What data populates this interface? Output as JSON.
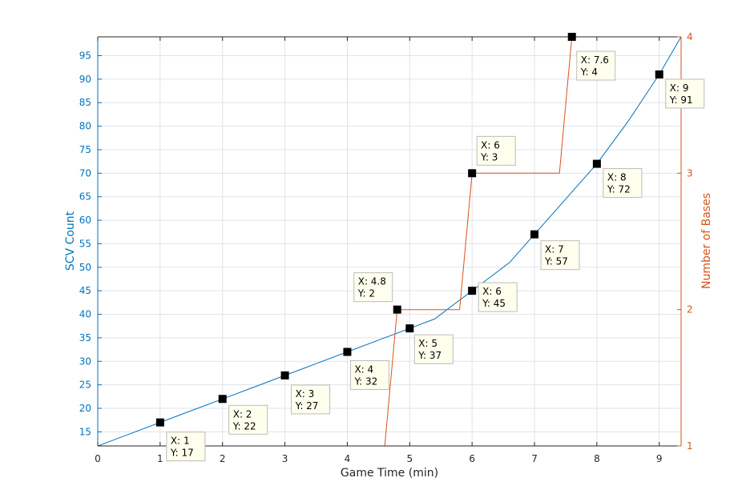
{
  "chart_data": {
    "type": "line",
    "xlabel": "Game Time (min)",
    "ylabel_left": "SCV Count",
    "ylabel_right": "Number of Bases",
    "xlim": [
      0,
      9.35
    ],
    "ylim_left": [
      12,
      99
    ],
    "ylim_right": [
      1,
      4
    ],
    "x_ticks": [
      0,
      1,
      2,
      3,
      4,
      5,
      6,
      7,
      8,
      9
    ],
    "y_left_ticks": [
      15,
      20,
      25,
      30,
      35,
      40,
      45,
      50,
      55,
      60,
      65,
      70,
      75,
      80,
      85,
      90,
      95
    ],
    "y_right_ticks": [
      1,
      2,
      3,
      4
    ],
    "grid": true,
    "colors": {
      "scv": "#0072BD",
      "bases": "#D95319",
      "grid": "#dfe3e8",
      "axis_dark": "#262626"
    },
    "series": [
      {
        "axis": "left",
        "values_x": [
          0,
          0.5,
          1,
          1.5,
          2,
          2.5,
          3,
          3.5,
          4,
          4.5,
          5,
          5.4,
          5.8,
          6,
          6.3,
          6.6,
          7,
          7.5,
          8,
          8.5,
          9,
          9.35
        ],
        "values_y": [
          12,
          14.5,
          17,
          19.5,
          22,
          24.5,
          27,
          29.5,
          32,
          34.5,
          37,
          39,
          43,
          45,
          48,
          51,
          57,
          64.5,
          72,
          81,
          91,
          99
        ]
      },
      {
        "axis": "right",
        "values_x": [
          0,
          4.6,
          4.8,
          5.8,
          6.0,
          7.4,
          7.6,
          9.35
        ],
        "values_y": [
          1,
          1,
          2,
          2,
          3,
          3,
          4,
          4
        ]
      }
    ],
    "datatips": [
      {
        "axis": "left",
        "x": 1,
        "y": 17,
        "label_x": "X: 1",
        "label_y": "Y: 17"
      },
      {
        "axis": "left",
        "x": 2,
        "y": 22,
        "label_x": "X: 2",
        "label_y": "Y: 22"
      },
      {
        "axis": "left",
        "x": 3,
        "y": 27,
        "label_x": "X: 3",
        "label_y": "Y: 27"
      },
      {
        "axis": "left",
        "x": 4,
        "y": 32,
        "label_x": "X: 4",
        "label_y": "Y: 32"
      },
      {
        "axis": "left",
        "x": 5,
        "y": 37,
        "label_x": "X: 5",
        "label_y": "Y: 37"
      },
      {
        "axis": "left",
        "x": 6,
        "y": 45,
        "label_x": "X: 6",
        "label_y": "Y: 45"
      },
      {
        "axis": "left",
        "x": 7,
        "y": 57,
        "label_x": "X: 7",
        "label_y": "Y: 57"
      },
      {
        "axis": "left",
        "x": 8,
        "y": 72,
        "label_x": "X: 8",
        "label_y": "Y: 72"
      },
      {
        "axis": "left",
        "x": 9,
        "y": 91,
        "label_x": "X: 9",
        "label_y": "Y: 91"
      },
      {
        "axis": "right",
        "x": 4.8,
        "y": 2,
        "label_x": "X: 4.8",
        "label_y": "Y: 2"
      },
      {
        "axis": "right",
        "x": 6,
        "y": 3,
        "label_x": "X: 6",
        "label_y": "Y: 3"
      },
      {
        "axis": "right",
        "x": 7.6,
        "y": 4,
        "label_x": "X: 7.6",
        "label_y": "Y: 4"
      }
    ]
  }
}
